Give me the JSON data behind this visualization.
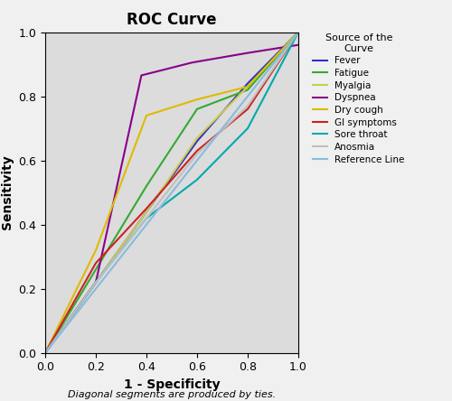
{
  "title": "ROC Curve",
  "xlabel": "1 - Specificity",
  "ylabel": "Sensitivity",
  "footer": "Diagonal segments are produced by ties.",
  "legend_title": "Source of the\nCurve",
  "plot_bg": "#dcdcdc",
  "fig_bg": "#f0f0f0",
  "curves": {
    "Fever": {
      "color": "#3333bb",
      "points": [
        [
          0.0,
          0.0
        ],
        [
          0.2,
          0.22
        ],
        [
          0.4,
          0.44
        ],
        [
          0.6,
          0.66
        ],
        [
          0.8,
          0.84
        ],
        [
          1.0,
          1.0
        ]
      ]
    },
    "Fatigue": {
      "color": "#33aa33",
      "points": [
        [
          0.0,
          0.0
        ],
        [
          0.2,
          0.26
        ],
        [
          0.4,
          0.52
        ],
        [
          0.6,
          0.76
        ],
        [
          0.8,
          0.82
        ],
        [
          1.0,
          1.0
        ]
      ]
    },
    "Myalgia": {
      "color": "#cccc55",
      "points": [
        [
          0.0,
          0.0
        ],
        [
          0.2,
          0.22
        ],
        [
          0.4,
          0.44
        ],
        [
          0.6,
          0.67
        ],
        [
          0.8,
          0.83
        ],
        [
          1.0,
          1.0
        ]
      ]
    },
    "Dyspnea": {
      "color": "#880088",
      "points": [
        [
          0.0,
          0.0
        ],
        [
          0.2,
          0.22
        ],
        [
          0.38,
          0.865
        ],
        [
          0.58,
          0.905
        ],
        [
          0.8,
          0.935
        ],
        [
          1.0,
          0.96
        ]
      ]
    },
    "Dry cough": {
      "color": "#ddbb00",
      "points": [
        [
          0.0,
          0.0
        ],
        [
          0.2,
          0.32
        ],
        [
          0.4,
          0.74
        ],
        [
          0.6,
          0.79
        ],
        [
          0.8,
          0.83
        ],
        [
          1.0,
          1.0
        ]
      ]
    },
    "GI symptoms": {
      "color": "#cc2222",
      "points": [
        [
          0.0,
          0.0
        ],
        [
          0.2,
          0.28
        ],
        [
          0.4,
          0.45
        ],
        [
          0.6,
          0.63
        ],
        [
          0.8,
          0.76
        ],
        [
          1.0,
          1.0
        ]
      ]
    },
    "Sore throat": {
      "color": "#00aaaa",
      "points": [
        [
          0.0,
          0.0
        ],
        [
          0.2,
          0.22
        ],
        [
          0.4,
          0.42
        ],
        [
          0.6,
          0.54
        ],
        [
          0.8,
          0.7
        ],
        [
          1.0,
          1.0
        ]
      ]
    },
    "Anosmia": {
      "color": "#c0c0c0",
      "points": [
        [
          0.0,
          0.0
        ],
        [
          0.2,
          0.22
        ],
        [
          0.4,
          0.42
        ],
        [
          0.6,
          0.62
        ],
        [
          0.8,
          0.77
        ],
        [
          1.0,
          1.0
        ]
      ]
    },
    "Reference Line": {
      "color": "#88bbdd",
      "points": [
        [
          0.0,
          0.0
        ],
        [
          1.0,
          1.0
        ]
      ]
    }
  },
  "xlim": [
    0.0,
    1.0
  ],
  "ylim": [
    0.0,
    1.0
  ],
  "xticks": [
    0.0,
    0.2,
    0.4,
    0.6,
    0.8,
    1.0
  ],
  "yticks": [
    0.0,
    0.2,
    0.4,
    0.6,
    0.8,
    1.0
  ]
}
